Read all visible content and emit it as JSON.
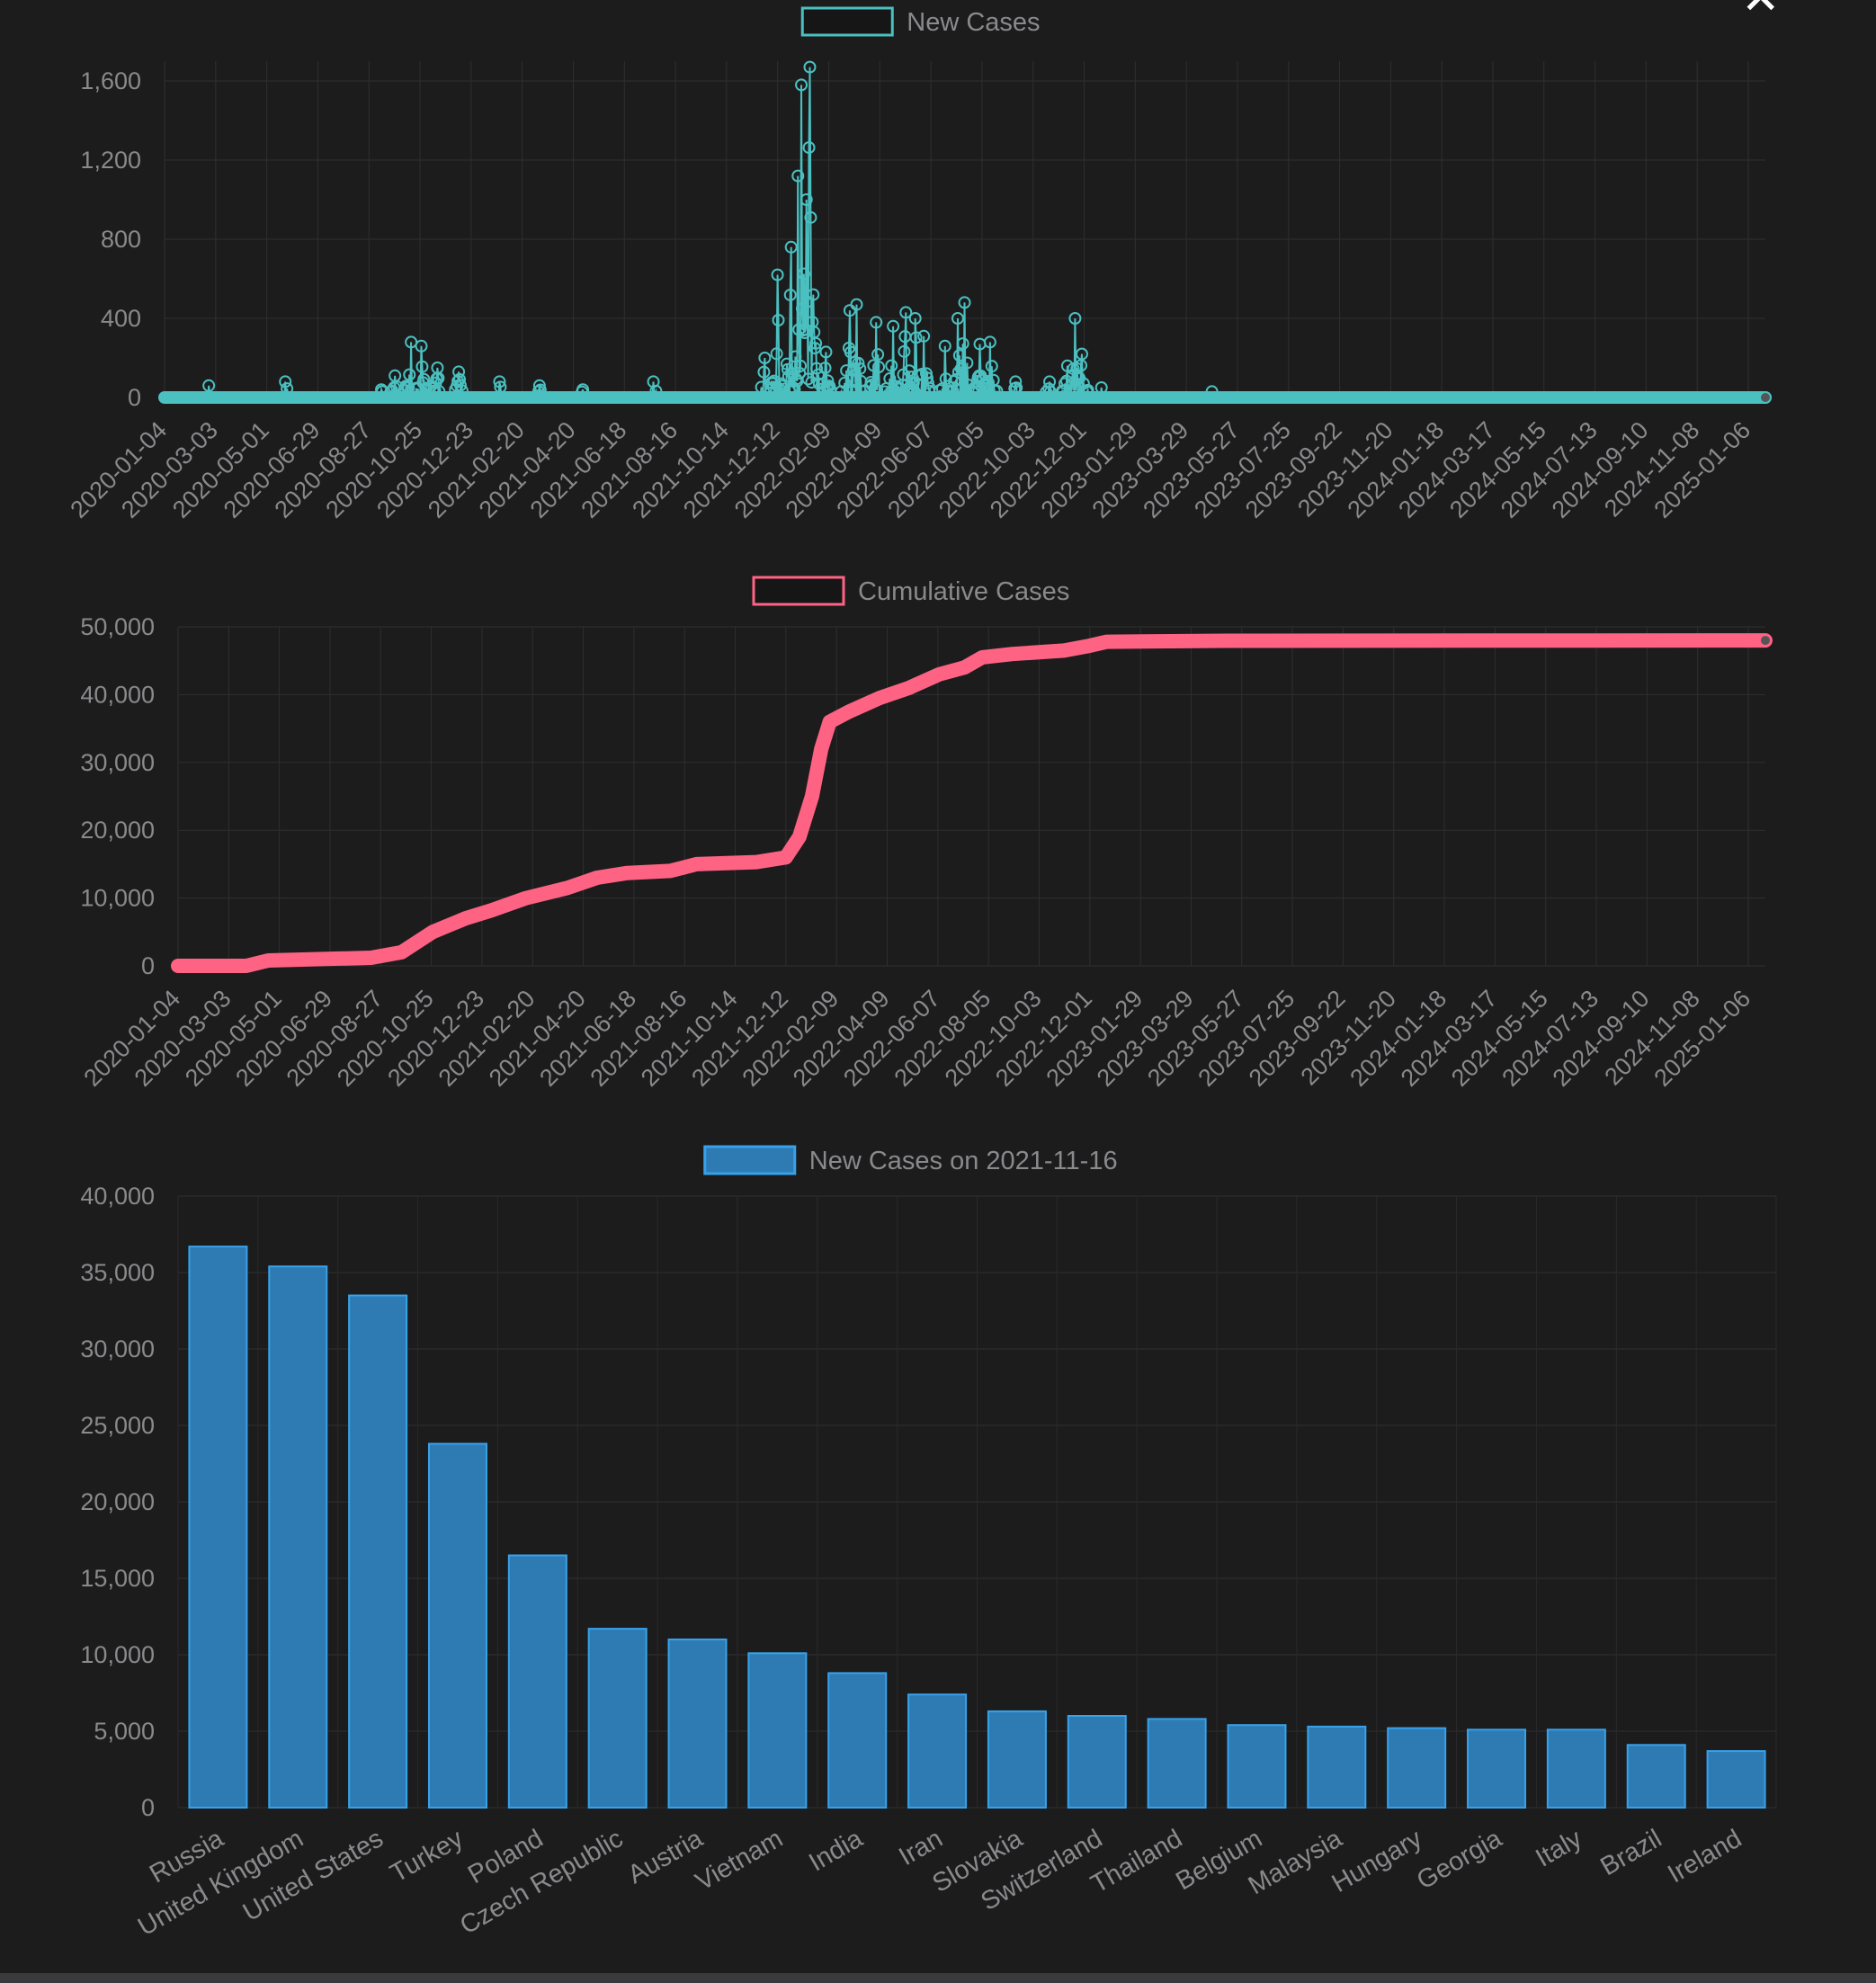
{
  "modal": {
    "close_symbol": "✕"
  },
  "chart_data": [
    {
      "type": "line",
      "legend": "New Cases",
      "color": "#4bc0c0",
      "ylim": [
        0,
        1700
      ],
      "yticks": [
        0,
        400,
        800,
        1200,
        1600
      ],
      "ytick_labels": [
        "0",
        "400",
        "800",
        "1,200",
        "1,600"
      ],
      "x_start": "2020-01-04",
      "x_end": "2025-03-01",
      "xtick_labels": [
        "2020-01-04",
        "2020-03-03",
        "2020-05-01",
        "2020-06-29",
        "2020-08-27",
        "2020-10-25",
        "2020-12-23",
        "2021-02-20",
        "2021-04-20",
        "2021-06-18",
        "2021-08-16",
        "2021-10-14",
        "2021-12-12",
        "2022-02-09",
        "2022-04-09",
        "2022-06-07",
        "2022-08-05",
        "2022-10-03",
        "2022-12-01",
        "2023-01-29",
        "2023-03-29",
        "2023-05-27",
        "2023-07-25",
        "2023-09-22",
        "2023-11-20",
        "2024-01-18",
        "2024-03-17",
        "2024-05-15",
        "2024-07-13",
        "2024-09-10",
        "2024-11-08",
        "2025-01-06"
      ],
      "approx_peaks": [
        {
          "date": "2020-02-25",
          "value": 60
        },
        {
          "date": "2020-04-15",
          "value": 20
        },
        {
          "date": "2020-05-25",
          "value": 80
        },
        {
          "date": "2020-09-15",
          "value": 40
        },
        {
          "date": "2020-10-01",
          "value": 110
        },
        {
          "date": "2020-10-20",
          "value": 280
        },
        {
          "date": "2020-11-01",
          "value": 260
        },
        {
          "date": "2020-11-20",
          "value": 150
        },
        {
          "date": "2020-12-15",
          "value": 130
        },
        {
          "date": "2021-02-01",
          "value": 80
        },
        {
          "date": "2021-03-20",
          "value": 60
        },
        {
          "date": "2021-05-10",
          "value": 40
        },
        {
          "date": "2021-08-01",
          "value": 80
        },
        {
          "date": "2021-10-20",
          "value": 20
        },
        {
          "date": "2021-12-10",
          "value": 200
        },
        {
          "date": "2021-12-25",
          "value": 620
        },
        {
          "date": "2022-01-10",
          "value": 760
        },
        {
          "date": "2022-01-18",
          "value": 1120
        },
        {
          "date": "2022-01-22",
          "value": 1580
        },
        {
          "date": "2022-01-28",
          "value": 1000
        },
        {
          "date": "2022-02-01",
          "value": 1670
        },
        {
          "date": "2022-02-05",
          "value": 520
        },
        {
          "date": "2022-02-20",
          "value": 230
        },
        {
          "date": "2022-03-20",
          "value": 440
        },
        {
          "date": "2022-03-28",
          "value": 470
        },
        {
          "date": "2022-04-20",
          "value": 380
        },
        {
          "date": "2022-05-10",
          "value": 360
        },
        {
          "date": "2022-05-25",
          "value": 430
        },
        {
          "date": "2022-06-05",
          "value": 400
        },
        {
          "date": "2022-06-15",
          "value": 310
        },
        {
          "date": "2022-07-10",
          "value": 260
        },
        {
          "date": "2022-07-25",
          "value": 400
        },
        {
          "date": "2022-08-02",
          "value": 480
        },
        {
          "date": "2022-08-20",
          "value": 270
        },
        {
          "date": "2022-09-01",
          "value": 280
        },
        {
          "date": "2022-10-01",
          "value": 80
        },
        {
          "date": "2022-11-10",
          "value": 80
        },
        {
          "date": "2022-12-01",
          "value": 160
        },
        {
          "date": "2022-12-10",
          "value": 400
        },
        {
          "date": "2022-12-18",
          "value": 220
        },
        {
          "date": "2023-01-10",
          "value": 50
        },
        {
          "date": "2023-05-20",
          "value": 30
        }
      ]
    },
    {
      "type": "line",
      "legend": "Cumulative Cases",
      "color": "#ff6384",
      "ylim": [
        0,
        50000
      ],
      "yticks": [
        0,
        10000,
        20000,
        30000,
        40000,
        50000
      ],
      "ytick_labels": [
        "0",
        "10,000",
        "20,000",
        "30,000",
        "40,000",
        "50,000"
      ],
      "x_start": "2020-01-04",
      "x_end": "2025-03-01",
      "xtick_labels": [
        "2020-01-04",
        "2020-03-03",
        "2020-05-01",
        "2020-06-29",
        "2020-08-27",
        "2020-10-25",
        "2020-12-23",
        "2021-02-20",
        "2021-04-20",
        "2021-06-18",
        "2021-08-16",
        "2021-10-14",
        "2021-12-12",
        "2022-02-09",
        "2022-04-09",
        "2022-06-07",
        "2022-08-05",
        "2022-10-03",
        "2022-12-01",
        "2023-01-29",
        "2023-03-29",
        "2023-05-27",
        "2023-07-25",
        "2023-09-22",
        "2023-11-20",
        "2024-01-18",
        "2024-03-17",
        "2024-05-15",
        "2024-07-13",
        "2024-09-10",
        "2024-11-08",
        "2025-01-06"
      ],
      "approx_points": [
        {
          "date": "2020-01-04",
          "value": 0
        },
        {
          "date": "2020-03-25",
          "value": 0
        },
        {
          "date": "2020-04-20",
          "value": 800
        },
        {
          "date": "2020-08-20",
          "value": 1200
        },
        {
          "date": "2020-09-25",
          "value": 2000
        },
        {
          "date": "2020-11-01",
          "value": 5000
        },
        {
          "date": "2020-12-10",
          "value": 7000
        },
        {
          "date": "2021-01-10",
          "value": 8200
        },
        {
          "date": "2021-02-20",
          "value": 10000
        },
        {
          "date": "2021-04-10",
          "value": 11500
        },
        {
          "date": "2021-05-15",
          "value": 13000
        },
        {
          "date": "2021-06-20",
          "value": 13700
        },
        {
          "date": "2021-08-10",
          "value": 14000
        },
        {
          "date": "2021-09-10",
          "value": 15000
        },
        {
          "date": "2021-11-20",
          "value": 15300
        },
        {
          "date": "2021-12-25",
          "value": 16000
        },
        {
          "date": "2022-01-10",
          "value": 19000
        },
        {
          "date": "2022-01-25",
          "value": 25000
        },
        {
          "date": "2022-02-05",
          "value": 32000
        },
        {
          "date": "2022-02-15",
          "value": 36000
        },
        {
          "date": "2022-03-10",
          "value": 37500
        },
        {
          "date": "2022-04-15",
          "value": 39500
        },
        {
          "date": "2022-05-20",
          "value": 41000
        },
        {
          "date": "2022-06-25",
          "value": 43000
        },
        {
          "date": "2022-07-25",
          "value": 44000
        },
        {
          "date": "2022-08-15",
          "value": 45500
        },
        {
          "date": "2022-09-20",
          "value": 46000
        },
        {
          "date": "2022-11-20",
          "value": 46500
        },
        {
          "date": "2022-12-20",
          "value": 47200
        },
        {
          "date": "2023-01-10",
          "value": 47800
        },
        {
          "date": "2023-06-01",
          "value": 47950
        },
        {
          "date": "2025-03-01",
          "value": 48000
        }
      ]
    },
    {
      "type": "bar",
      "legend": "New Cases on 2021-11-16",
      "color": "#2e7bb4",
      "border_color": "#36a2eb",
      "ylim": [
        0,
        40000
      ],
      "yticks": [
        0,
        5000,
        10000,
        15000,
        20000,
        25000,
        30000,
        35000,
        40000
      ],
      "ytick_labels": [
        "0",
        "5,000",
        "10,000",
        "15,000",
        "20,000",
        "25,000",
        "30,000",
        "35,000",
        "40,000"
      ],
      "categories": [
        "Russia",
        "United Kingdom",
        "United States",
        "Turkey",
        "Poland",
        "Czech Republic",
        "Austria",
        "Vietnam",
        "India",
        "Iran",
        "Slovakia",
        "Switzerland",
        "Thailand",
        "Belgium",
        "Malaysia",
        "Hungary",
        "Georgia",
        "Italy",
        "Brazil",
        "Ireland"
      ],
      "values": [
        36700,
        35400,
        33500,
        23800,
        16500,
        11700,
        11000,
        10100,
        8800,
        7400,
        6300,
        6000,
        5800,
        5400,
        5300,
        5200,
        5100,
        5100,
        4100,
        3700
      ]
    }
  ]
}
